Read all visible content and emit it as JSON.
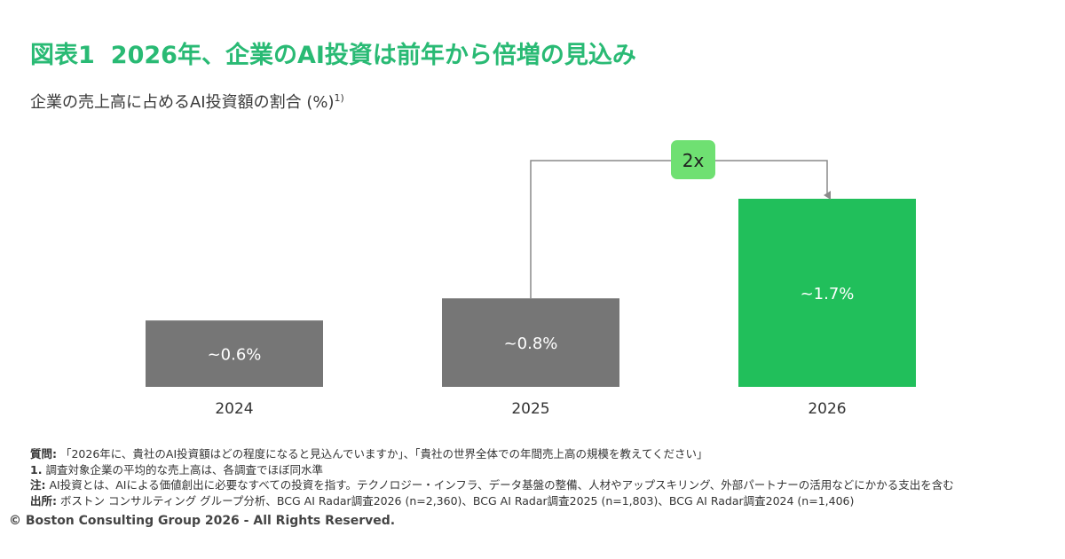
{
  "title": {
    "number": "図表1",
    "text": "2026年、企業のAI投資は前年から倍増の見込み"
  },
  "subtitle": {
    "text": "企業の売上高に占めるAI投資額の割合 (%)",
    "note": "1)"
  },
  "chart_data": {
    "type": "bar",
    "categories": [
      "2024",
      "2025",
      "2026"
    ],
    "values": [
      0.6,
      0.8,
      1.7
    ],
    "data_labels": [
      "~0.6%",
      "~0.8%",
      "~1.7%"
    ],
    "bar_colors": [
      "#767676",
      "#767676",
      "#21bf5b"
    ],
    "annotation": {
      "text": "2x",
      "from": "2025",
      "to": "2026",
      "color": "#6fe072"
    },
    "ylim": [
      0,
      1.7
    ],
    "grid": false,
    "legend": "none"
  },
  "footnotes": {
    "question_label": "質問:",
    "question_text": "「2026年に、貴社のAI投資額はどの程度になると見込んでいますか」、「貴社の世界全体での年間売上高の規模を教えてください」",
    "note1_label": "1.",
    "note1_text": "調査対象企業の平均的な売上高は、各調査でほぼ同水準",
    "note_label": "注:",
    "note_text": "AI投資とは、AIによる価値創出に必要なすべての投資を指す。テクノロジー・インフラ、データ基盤の整備、人材やアップスキリング、外部パートナーの活用などにかかる支出を含む",
    "source_label": "出所:",
    "source_text": "ボストン コンサルティング グループ分析、BCG AI Radar調査2026 (n=2,360)、BCG AI Radar調査2025 (n=1,803)、BCG AI Radar調査2024 (n=1,406)"
  },
  "copyright": "© Boston Consulting Group 2026 - All Rights Reserved."
}
